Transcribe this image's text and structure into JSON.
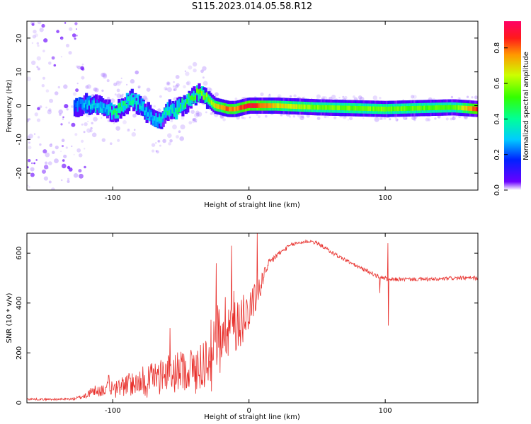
{
  "title": "S115.2023.014.05.58.R12",
  "colors": {
    "snr_line": "#e8302c",
    "spectrum_low": "#7b14ff",
    "spectrum_mid": "#00e6ff",
    "spectrum_high": "#ff1a1a"
  },
  "chart_data": [
    {
      "type": "heatmap",
      "xlabel": "Height of straight line (km)",
      "ylabel": "Frequency (Hz)",
      "xlim": [
        -163,
        168
      ],
      "ylim": [
        -25,
        25
      ],
      "xticks": [
        -100,
        0,
        100
      ],
      "yticks": [
        -20,
        -10,
        0,
        10,
        20
      ],
      "xtick_labels": [
        "-100",
        "0",
        "100"
      ],
      "ytick_labels": [
        "-20",
        "-10",
        "0",
        "10",
        "20"
      ],
      "colorbar": {
        "label": "Normalized spectral amplitude",
        "range": [
          0,
          0.95
        ],
        "ticks": [
          "0.0",
          "0.2",
          "0.4",
          "0.6",
          "0.8"
        ],
        "colormap": "rainbow (violet-blue-cyan-green-yellow-red)"
      },
      "ridge": {
        "x": [
          -125,
          -115,
          -105,
          -100,
          -95,
          -90,
          -85,
          -80,
          -75,
          -70,
          -65,
          -60,
          -55,
          -50,
          -45,
          -40,
          -35,
          -30,
          -25,
          -20,
          -15,
          -10,
          0,
          20,
          50,
          100,
          150,
          168
        ],
        "y": [
          0,
          0.5,
          -1,
          -2,
          -1,
          1,
          1.5,
          0.5,
          -2,
          -4,
          -5,
          -1,
          -2,
          0,
          1.5,
          3,
          4,
          2,
          0,
          -0.5,
          -1,
          -1,
          0,
          0,
          -0.5,
          -1,
          -0.5,
          -1
        ],
        "amplitude": [
          0.25,
          0.35,
          0.3,
          0.45,
          0.5,
          0.45,
          0.4,
          0.35,
          0.3,
          0.3,
          0.35,
          0.45,
          0.4,
          0.45,
          0.5,
          0.55,
          0.6,
          0.6,
          0.7,
          0.8,
          0.85,
          0.8,
          0.95,
          0.75,
          0.6,
          0.6,
          0.55,
          0.9
        ]
      }
    },
    {
      "type": "line",
      "xlabel": "Height of straight line (km)",
      "ylabel": "SNR (10 * v/v)",
      "xlim": [
        -163,
        168
      ],
      "ylim": [
        0,
        680
      ],
      "xticks": [
        -100,
        0,
        100
      ],
      "yticks": [
        0,
        200,
        400,
        600
      ],
      "xtick_labels": [
        "-100",
        "0",
        "100"
      ],
      "ytick_labels": [
        "0",
        "200",
        "400",
        "600"
      ],
      "series": [
        {
          "x": [
            -163,
            -150,
            -140,
            -130,
            -125,
            -120,
            -115,
            -110,
            -100,
            -90,
            -80,
            -70,
            -60,
            -50,
            -40,
            -35,
            -30,
            -25,
            -20,
            -15,
            -10,
            -5,
            0,
            5,
            10,
            15,
            20,
            25,
            30,
            35,
            40,
            45,
            50,
            55,
            60,
            70,
            80,
            90,
            95,
            100,
            102,
            105,
            110,
            120,
            130,
            140,
            150,
            160,
            168
          ],
          "y": [
            15,
            14,
            14,
            15,
            20,
            30,
            45,
            50,
            60,
            70,
            90,
            110,
            120,
            130,
            140,
            150,
            180,
            250,
            300,
            320,
            330,
            340,
            380,
            420,
            500,
            560,
            590,
            610,
            630,
            640,
            645,
            648,
            640,
            625,
            605,
            575,
            545,
            520,
            505,
            500,
            490,
            495,
            495,
            495,
            495,
            495,
            500,
            500,
            500
          ],
          "noise": [
            4,
            4,
            4,
            5,
            8,
            15,
            20,
            25,
            30,
            45,
            55,
            60,
            70,
            80,
            90,
            100,
            120,
            130,
            140,
            140,
            130,
            110,
            90,
            60,
            35,
            20,
            15,
            10,
            8,
            8,
            8,
            8,
            8,
            8,
            8,
            8,
            8,
            8,
            8,
            8,
            8,
            8,
            8,
            8,
            8,
            8,
            8,
            8,
            8
          ],
          "spikes": [
            {
              "x": -103,
              "y": 110
            },
            {
              "x": -58,
              "y": 300
            },
            {
              "x": -24,
              "y": 560
            },
            {
              "x": -13,
              "y": 630
            },
            {
              "x": 6,
              "y": 680
            },
            {
              "x": 96,
              "y": 440
            },
            {
              "x": 102,
              "y": 640
            },
            {
              "x": 102.3,
              "y": 310
            }
          ]
        }
      ]
    }
  ]
}
